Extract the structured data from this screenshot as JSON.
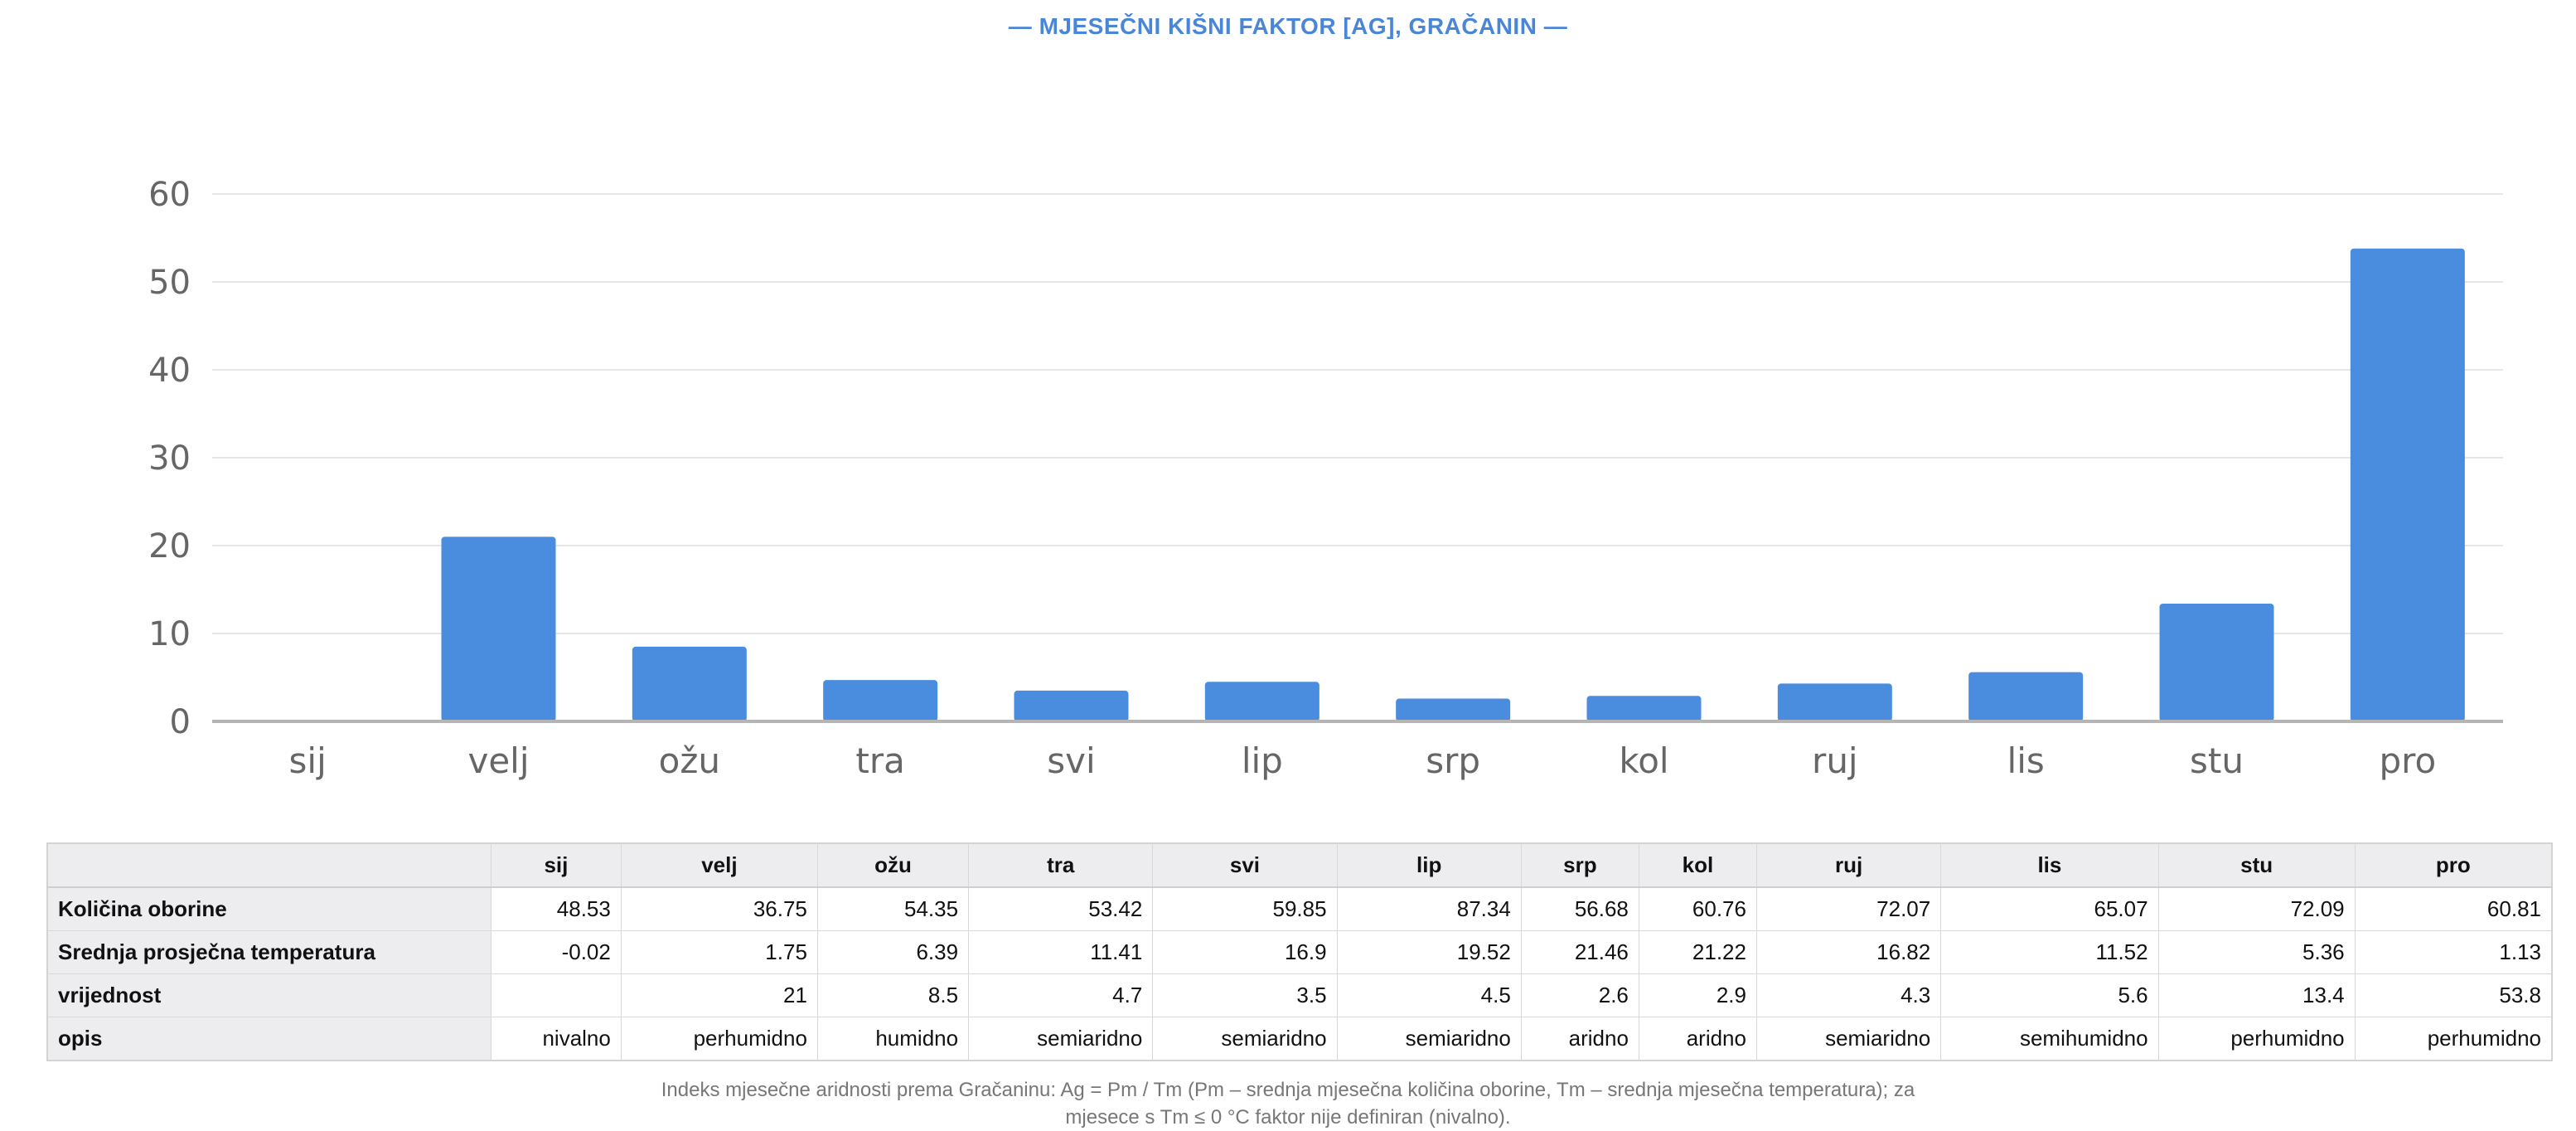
{
  "title": "— MJESEČNI KIŠNI FAKTOR [AG], GRAČANIN —",
  "chart_data": {
    "type": "bar",
    "categories": [
      "sij",
      "velj",
      "ožu",
      "tra",
      "svi",
      "lip",
      "srp",
      "kol",
      "ruj",
      "lis",
      "stu",
      "pro"
    ],
    "values": [
      null,
      21,
      8.5,
      4.7,
      3.5,
      4.5,
      2.6,
      2.9,
      4.3,
      5.6,
      13.4,
      53.8
    ],
    "ylim": [
      0,
      60
    ],
    "yticks": [
      0,
      10,
      20,
      30,
      40,
      50,
      60
    ],
    "grid": true,
    "bar_color": "#4a8ddf"
  },
  "table": {
    "headers": [
      "",
      "sij",
      "velj",
      "ožu",
      "tra",
      "svi",
      "lip",
      "srp",
      "kol",
      "ruj",
      "lis",
      "stu",
      "pro"
    ],
    "rows": [
      {
        "label": "Količina oborine",
        "cells": [
          "48.53",
          "36.75",
          "54.35",
          "53.42",
          "59.85",
          "87.34",
          "56.68",
          "60.76",
          "72.07",
          "65.07",
          "72.09",
          "60.81"
        ]
      },
      {
        "label": "Srednja prosječna temperatura",
        "cells": [
          "-0.02",
          "1.75",
          "6.39",
          "11.41",
          "16.9",
          "19.52",
          "21.46",
          "21.22",
          "16.82",
          "11.52",
          "5.36",
          "1.13"
        ]
      },
      {
        "label": "vrijednost",
        "cells": [
          "",
          "21",
          "8.5",
          "4.7",
          "3.5",
          "4.5",
          "2.6",
          "2.9",
          "4.3",
          "5.6",
          "13.4",
          "53.8"
        ]
      },
      {
        "label": "opis",
        "cells": [
          "nivalno",
          "perhumidno",
          "humidno",
          "semiaridno",
          "semiaridno",
          "semiaridno",
          "aridno",
          "aridno",
          "semiaridno",
          "semihumidno",
          "perhumidno",
          "perhumidno"
        ]
      }
    ]
  },
  "note": "Indeks mjesečne aridnosti prema Gračaninu: Ag = Pm / Tm (Pm – srednja mjesečna količina oborine, Tm – srednja mjesečna temperatura); za mjesece s Tm ≤ 0 °C faktor nije definiran (nivalno)."
}
